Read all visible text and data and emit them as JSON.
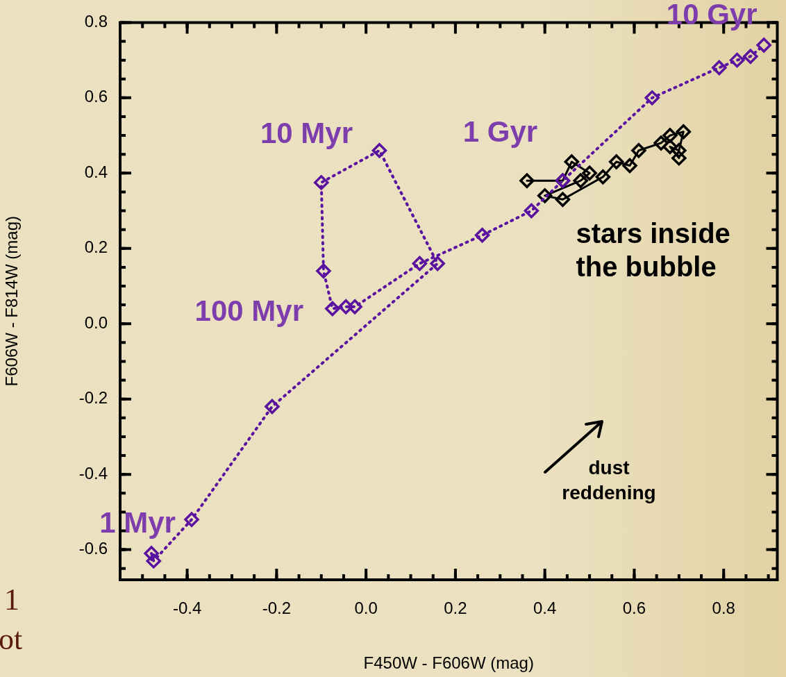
{
  "chart_data": {
    "type": "line",
    "xlabel": "F450W - F606W (mag)",
    "ylabel": "F606W - F814W (mag)",
    "xlim": [
      -0.55,
      0.92
    ],
    "ylim": [
      -0.68,
      0.8
    ],
    "xticks": [
      -0.4,
      -0.2,
      {
        "value": 0,
        "label": "0.0"
      },
      0.2,
      0.4,
      0.6,
      0.8
    ],
    "yticks": [
      -0.6,
      -0.4,
      -0.2,
      {
        "value": 0,
        "label": "0.0"
      },
      0.2,
      0.4,
      0.6,
      {
        "value": 0.8,
        "label": "0.8"
      }
    ],
    "grid": false,
    "marker": "diamond",
    "series": [
      {
        "color": "#5a12a0",
        "line_style": "dotted",
        "x": [
          -0.48,
          -0.475,
          -0.39,
          -0.21,
          0.16,
          0.03,
          -0.1,
          -0.095,
          -0.075,
          -0.045,
          -0.025,
          0.12,
          0.26,
          0.37,
          0.44,
          0.64,
          0.79,
          0.83,
          0.86,
          0.89
        ],
        "values": [
          -0.61,
          -0.63,
          -0.52,
          -0.22,
          0.16,
          0.46,
          0.375,
          0.14,
          0.04,
          0.045,
          0.045,
          0.16,
          0.235,
          0.3,
          0.38,
          0.6,
          0.68,
          0.7,
          0.71,
          0.74
        ]
      },
      {
        "name": "stars inside the bubble",
        "color": "#000000",
        "line_style": "solid",
        "x": [
          0.36,
          0.44,
          0.46,
          0.5,
          0.48,
          0.4,
          0.44,
          0.53,
          0.56,
          0.59,
          0.61,
          0.66,
          0.68,
          0.71,
          0.7,
          0.68,
          0.7
        ],
        "values": [
          0.38,
          0.38,
          0.43,
          0.4,
          0.38,
          0.34,
          0.33,
          0.39,
          0.43,
          0.42,
          0.46,
          0.48,
          0.5,
          0.51,
          0.46,
          0.47,
          0.44
        ]
      }
    ],
    "annotations": [
      {
        "text": "10 Myr",
        "x": 0.03,
        "y": 0.46
      },
      {
        "text": "100 Myr",
        "x": -0.075,
        "y": 0.04
      },
      {
        "text": "1 Myr",
        "x": -0.48,
        "y": -0.61
      },
      {
        "text": "1 Gyr",
        "x": 0.44,
        "y": 0.38
      },
      {
        "text": "10 Gyr",
        "x": 0.89,
        "y": 0.74
      },
      "dust reddening",
      "1",
      "ot"
    ]
  }
}
